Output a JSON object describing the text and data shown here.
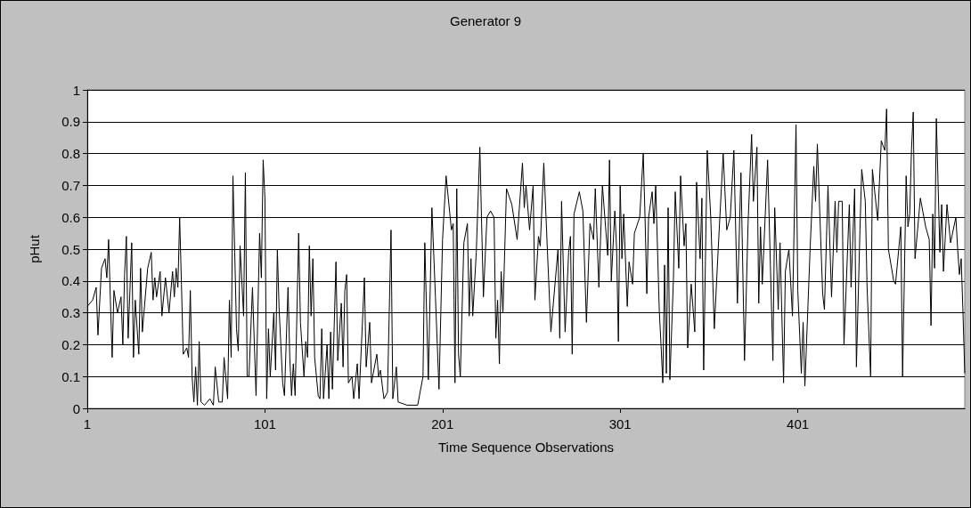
{
  "chart_data": {
    "type": "line",
    "title": "Generator 9",
    "xlabel": "Time Sequence Observations",
    "ylabel": "pHut",
    "xlim": [
      1,
      495
    ],
    "xticks": [
      1,
      101,
      201,
      301,
      401
    ],
    "ylim": [
      0,
      1
    ],
    "yticks": [
      0,
      0.1,
      0.2,
      0.3,
      0.4,
      0.5,
      0.6,
      0.7,
      0.8,
      0.9,
      1
    ],
    "grid": "y",
    "marker": "none",
    "line_style": "solid",
    "series": [
      {
        "color": "#000000",
        "x": [
          1,
          4,
          6,
          7,
          9,
          11,
          12,
          13,
          14,
          15,
          16,
          18,
          20,
          21,
          22,
          23,
          24,
          26,
          27,
          28,
          30,
          31,
          32,
          35,
          37,
          38,
          39,
          40,
          42,
          43,
          45,
          47,
          49,
          50,
          51,
          52,
          53,
          54,
          55,
          57,
          58,
          59,
          60,
          61,
          62,
          63,
          64,
          65,
          67,
          70,
          72,
          73,
          75,
          77,
          78,
          80,
          81,
          82,
          83,
          84,
          85,
          86,
          87,
          89,
          90,
          91,
          92,
          94,
          96,
          98,
          99,
          100,
          101,
          102,
          103,
          104,
          106,
          107,
          108,
          109,
          111,
          112,
          114,
          115,
          116,
          117,
          118,
          120,
          121,
          123,
          124,
          125,
          126,
          127,
          128,
          129,
          131,
          132,
          133,
          134,
          136,
          137,
          138,
          139,
          141,
          142,
          144,
          145,
          146,
          147,
          148,
          150,
          151,
          153,
          154,
          157,
          158,
          160,
          161,
          164,
          165,
          166,
          168,
          170,
          172,
          173,
          175,
          176,
          181,
          187,
          190,
          191,
          193,
          195,
          197,
          199,
          201,
          203,
          206,
          207,
          208,
          209,
          210,
          211,
          213,
          215,
          216,
          217,
          218,
          220,
          222,
          223,
          224,
          226,
          228,
          230,
          231,
          232,
          233,
          234,
          235,
          237,
          240,
          243,
          246,
          247,
          248,
          250,
          252,
          253,
          255,
          256,
          258,
          260,
          262,
          266,
          267,
          268,
          270,
          272,
          273,
          274,
          275,
          278,
          280,
          282,
          284,
          286,
          287,
          289,
          291,
          294,
          295,
          296,
          298,
          299,
          300,
          301,
          302,
          303,
          305,
          306,
          308,
          309,
          312,
          314,
          315,
          316,
          317,
          319,
          320,
          321,
          323,
          324,
          325,
          326,
          327,
          328,
          329,
          331,
          332,
          334,
          335,
          337,
          338,
          339,
          341,
          343,
          344,
          346,
          347,
          348,
          350,
          352,
          354,
          356,
          359,
          361,
          363,
          365,
          367,
          369,
          371,
          373,
          375,
          376,
          378,
          379,
          380,
          381,
          384,
          387,
          388,
          390,
          391,
          393,
          394,
          396,
          398,
          400,
          401,
          403,
          404,
          405,
          408,
          410,
          411,
          412,
          415,
          416,
          418,
          420,
          422,
          423,
          424,
          426,
          427,
          430,
          431,
          433,
          434,
          436,
          437,
          439,
          440,
          442,
          443,
          446,
          448,
          450,
          451,
          452,
          455,
          456,
          459,
          460,
          462,
          463,
          464,
          465,
          466,
          467,
          470,
          473,
          475,
          476,
          477,
          478,
          479,
          481,
          482,
          483,
          485,
          487,
          490,
          491,
          492,
          493,
          494,
          495
        ],
        "values": [
          0.32,
          0.34,
          0.38,
          0.23,
          0.44,
          0.47,
          0.41,
          0.53,
          0.34,
          0.16,
          0.37,
          0.3,
          0.35,
          0.2,
          0.42,
          0.54,
          0.22,
          0.52,
          0.16,
          0.34,
          0.17,
          0.44,
          0.24,
          0.44,
          0.49,
          0.34,
          0.41,
          0.35,
          0.43,
          0.29,
          0.41,
          0.3,
          0.43,
          0.35,
          0.44,
          0.38,
          0.6,
          0.39,
          0.17,
          0.19,
          0.16,
          0.37,
          0.1,
          0.02,
          0.13,
          0.01,
          0.21,
          0.02,
          0.01,
          0.03,
          0.01,
          0.13,
          0.02,
          0.02,
          0.16,
          0.03,
          0.34,
          0.16,
          0.73,
          0.49,
          0.25,
          0.18,
          0.51,
          0.29,
          0.74,
          0.1,
          0.1,
          0.38,
          0.04,
          0.55,
          0.41,
          0.78,
          0.66,
          0.03,
          0.25,
          0.1,
          0.3,
          0.12,
          0.5,
          0.31,
          0.08,
          0.04,
          0.38,
          0.16,
          0.04,
          0.14,
          0.04,
          0.55,
          0.27,
          0.1,
          0.21,
          0.16,
          0.51,
          0.29,
          0.47,
          0.16,
          0.04,
          0.03,
          0.25,
          0.03,
          0.2,
          0.03,
          0.24,
          0.06,
          0.46,
          0.15,
          0.33,
          0.13,
          0.37,
          0.42,
          0.08,
          0.1,
          0.03,
          0.14,
          0.03,
          0.41,
          0.13,
          0.27,
          0.08,
          0.17,
          0.1,
          0.12,
          0.03,
          0.05,
          0.56,
          0.03,
          0.13,
          0.02,
          0.01,
          0.01,
          0.1,
          0.52,
          0.09,
          0.63,
          0.35,
          0.06,
          0.53,
          0.73,
          0.56,
          0.58,
          0.08,
          0.69,
          0.17,
          0.1,
          0.52,
          0.58,
          0.29,
          0.47,
          0.29,
          0.49,
          0.82,
          0.58,
          0.35,
          0.6,
          0.62,
          0.6,
          0.22,
          0.34,
          0.14,
          0.43,
          0.3,
          0.69,
          0.64,
          0.53,
          0.77,
          0.63,
          0.7,
          0.56,
          0.7,
          0.34,
          0.54,
          0.51,
          0.77,
          0.5,
          0.24,
          0.5,
          0.22,
          0.65,
          0.24,
          0.49,
          0.54,
          0.17,
          0.61,
          0.68,
          0.62,
          0.27,
          0.58,
          0.53,
          0.69,
          0.38,
          0.7,
          0.48,
          0.78,
          0.4,
          0.62,
          0.5,
          0.21,
          0.7,
          0.47,
          0.61,
          0.32,
          0.46,
          0.39,
          0.55,
          0.6,
          0.8,
          0.6,
          0.36,
          0.6,
          0.68,
          0.58,
          0.7,
          0.31,
          0.2,
          0.08,
          0.45,
          0.11,
          0.63,
          0.09,
          0.41,
          0.68,
          0.44,
          0.73,
          0.51,
          0.58,
          0.19,
          0.39,
          0.24,
          0.71,
          0.47,
          0.66,
          0.12,
          0.81,
          0.6,
          0.25,
          0.48,
          0.8,
          0.56,
          0.6,
          0.81,
          0.33,
          0.74,
          0.15,
          0.58,
          0.86,
          0.65,
          0.82,
          0.33,
          0.57,
          0.39,
          0.78,
          0.15,
          0.63,
          0.31,
          0.52,
          0.08,
          0.43,
          0.5,
          0.29,
          0.89,
          0.37,
          0.11,
          0.27,
          0.07,
          0.51,
          0.76,
          0.65,
          0.83,
          0.36,
          0.31,
          0.7,
          0.35,
          0.65,
          0.49,
          0.65,
          0.65,
          0.2,
          0.64,
          0.38,
          0.69,
          0.13,
          0.56,
          0.75,
          0.65,
          0.38,
          0.1,
          0.75,
          0.59,
          0.84,
          0.81,
          0.94,
          0.5,
          0.4,
          0.39,
          0.57,
          0.1,
          0.73,
          0.57,
          0.61,
          0.81,
          0.93,
          0.47,
          0.66,
          0.57,
          0.53,
          0.26,
          0.61,
          0.44,
          0.91,
          0.49,
          0.64,
          0.43,
          0.64,
          0.52,
          0.6,
          0.5,
          0.42,
          0.47,
          0.3,
          0.11
        ]
      }
    ]
  }
}
